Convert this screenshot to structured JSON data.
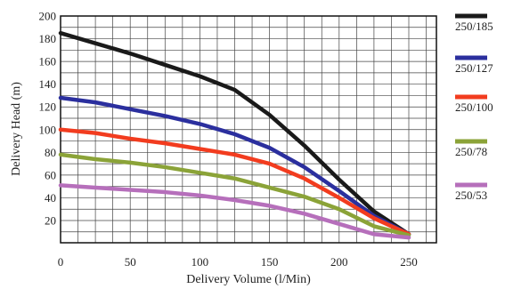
{
  "chart_data": {
    "type": "line",
    "xlabel": "Delivery Volume (l/Min)",
    "ylabel": "Delivery Head (m)",
    "xlim": [
      0,
      250
    ],
    "ylim": [
      0,
      200
    ],
    "x_ticks": [
      0,
      50,
      100,
      150,
      200,
      250
    ],
    "y_ticks": [
      20,
      40,
      60,
      80,
      100,
      120,
      140,
      160,
      180,
      200
    ],
    "grid": true,
    "legend_position": "right",
    "series": [
      {
        "name": "250/185",
        "color": "#1a1a1a",
        "x": [
          0,
          25,
          50,
          75,
          100,
          125,
          150,
          175,
          200,
          225,
          250
        ],
        "y": [
          185,
          176,
          167,
          157,
          147,
          135,
          113,
          86,
          56,
          28,
          8
        ]
      },
      {
        "name": "250/127",
        "color": "#2b2f9e",
        "x": [
          0,
          25,
          50,
          75,
          100,
          125,
          150,
          175,
          200,
          225,
          250
        ],
        "y": [
          128,
          124,
          118,
          112,
          105,
          96,
          84,
          67,
          46,
          24,
          8
        ]
      },
      {
        "name": "250/100",
        "color": "#f23c1f",
        "x": [
          0,
          25,
          50,
          75,
          100,
          125,
          150,
          175,
          200,
          225,
          250
        ],
        "y": [
          100,
          97,
          92,
          88,
          83,
          78,
          70,
          57,
          40,
          22,
          8
        ]
      },
      {
        "name": "250/78",
        "color": "#8ba338",
        "x": [
          0,
          25,
          50,
          75,
          100,
          125,
          150,
          175,
          200,
          225,
          250
        ],
        "y": [
          78,
          74,
          71,
          67,
          62,
          57,
          49,
          41,
          30,
          15,
          7
        ]
      },
      {
        "name": "250/53",
        "color": "#b66fbb",
        "x": [
          0,
          25,
          50,
          75,
          100,
          125,
          150,
          175,
          200,
          225,
          250
        ],
        "y": [
          51,
          49,
          47,
          45,
          42,
          38,
          33,
          26,
          17,
          8,
          5
        ]
      }
    ]
  }
}
